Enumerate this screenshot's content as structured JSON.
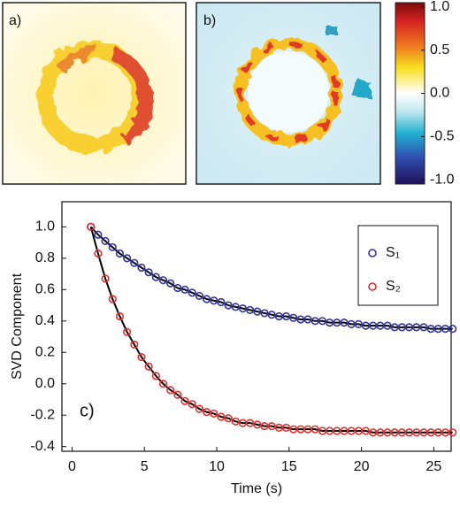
{
  "chart_data": {
    "type": "scatter",
    "panel_labels": [
      "a)",
      "b)",
      "c)"
    ],
    "colorbar": {
      "lim": [
        -1.05,
        1.05
      ],
      "ticks": [
        {
          "value": 1.0,
          "label": "1.0"
        },
        {
          "value": 0.5,
          "label": "0.5"
        },
        {
          "value": 0.0,
          "label": "0.0"
        },
        {
          "value": -0.5,
          "label": "-0.5"
        },
        {
          "value": -1.0,
          "label": "-1.0"
        }
      ]
    },
    "x_label": "Time (s)",
    "y_label": "SVD Component",
    "xlim": [
      -0.7,
      26.2
    ],
    "ylim": [
      -0.43,
      1.16
    ],
    "xticks": [
      0,
      5,
      10,
      15,
      20,
      25
    ],
    "yticks": [
      {
        "value": 1.0,
        "label": "1.0"
      },
      {
        "value": 0.8,
        "label": "0.8"
      },
      {
        "value": 0.6,
        "label": "0.6"
      },
      {
        "value": 0.4,
        "label": "0.4"
      },
      {
        "value": 0.2,
        "label": "0.2"
      },
      {
        "value": 0.0,
        "label": "0.0"
      },
      {
        "value": -0.2,
        "label": "-0.2"
      },
      {
        "value": -0.4,
        "label": "-0.4"
      }
    ],
    "grid": false,
    "legend": "upper right",
    "fit_color": "#000000",
    "x": [
      1.3,
      1.8,
      2.3,
      2.8,
      3.3,
      3.8,
      4.3,
      4.8,
      5.3,
      5.8,
      6.3,
      6.8,
      7.3,
      7.8,
      8.3,
      8.8,
      9.3,
      9.8,
      10.3,
      10.8,
      11.3,
      11.8,
      12.3,
      12.8,
      13.3,
      13.8,
      14.3,
      14.8,
      15.3,
      15.8,
      16.3,
      16.8,
      17.3,
      17.8,
      18.3,
      18.8,
      19.3,
      19.8,
      20.3,
      20.8,
      21.3,
      21.8,
      22.3,
      22.8,
      23.3,
      23.8,
      24.3,
      24.8,
      25.3,
      25.8,
      26.3
    ],
    "series": [
      {
        "name": "S₁",
        "color": "#34349a",
        "values": [
          1.0,
          0.95,
          0.91,
          0.87,
          0.83,
          0.8,
          0.77,
          0.74,
          0.71,
          0.68,
          0.66,
          0.64,
          0.61,
          0.6,
          0.58,
          0.56,
          0.54,
          0.53,
          0.52,
          0.5,
          0.49,
          0.48,
          0.47,
          0.46,
          0.45,
          0.44,
          0.43,
          0.43,
          0.42,
          0.41,
          0.41,
          0.4,
          0.4,
          0.39,
          0.39,
          0.39,
          0.38,
          0.38,
          0.37,
          0.37,
          0.37,
          0.37,
          0.36,
          0.36,
          0.36,
          0.36,
          0.36,
          0.35,
          0.35,
          0.35,
          0.35
        ]
      },
      {
        "name": "S₂",
        "color": "#e03030",
        "values": [
          1.0,
          0.83,
          0.67,
          0.54,
          0.43,
          0.33,
          0.25,
          0.17,
          0.11,
          0.05,
          0.0,
          -0.04,
          -0.07,
          -0.11,
          -0.13,
          -0.16,
          -0.18,
          -0.19,
          -0.21,
          -0.22,
          -0.24,
          -0.25,
          -0.25,
          -0.26,
          -0.27,
          -0.27,
          -0.28,
          -0.28,
          -0.29,
          -0.29,
          -0.29,
          -0.29,
          -0.3,
          -0.3,
          -0.3,
          -0.3,
          -0.3,
          -0.3,
          -0.3,
          -0.31,
          -0.31,
          -0.31,
          -0.31,
          -0.31,
          -0.31,
          -0.31,
          -0.31,
          -0.31,
          -0.31,
          -0.31,
          -0.31
        ]
      }
    ]
  }
}
